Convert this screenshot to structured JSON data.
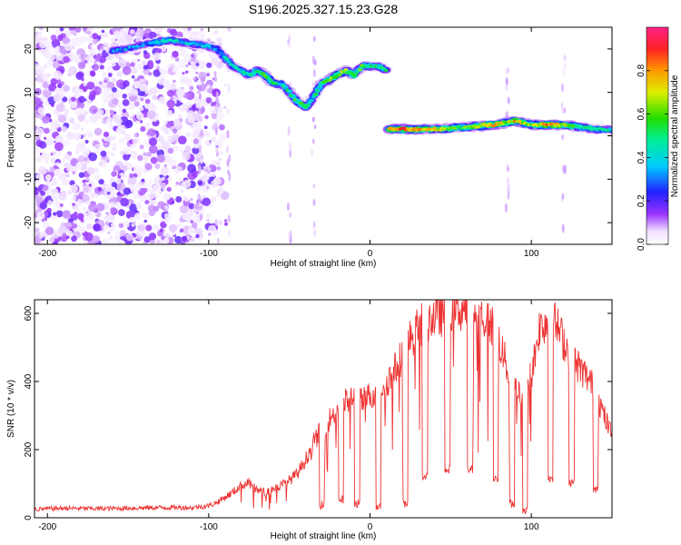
{
  "title": "S196.2025.327.15.23.G28",
  "chart_data": [
    {
      "type": "heatmap",
      "name": "spectrogram",
      "xlabel": "Height of straight line (km)",
      "ylabel": "Frequency (Hz)",
      "xlim": [
        -208,
        150
      ],
      "ylim": [
        -25,
        25
      ],
      "xticks": [
        -200,
        -100,
        0,
        100
      ],
      "yticks": [
        -20,
        -10,
        0,
        10,
        20
      ],
      "colorbar": {
        "label": "Normalized spectral amplitude",
        "range": [
          0,
          1
        ],
        "ticks": [
          0.0,
          0.2,
          0.4,
          0.6,
          0.8
        ],
        "tick_labels": [
          "0.0",
          "0.2",
          "0.4",
          "0.6",
          "0.8"
        ]
      },
      "ridge": {
        "description_points_x": [
          -160,
          -150,
          -140,
          -125,
          -115,
          -105,
          -95,
          -90,
          -85,
          -80,
          -75,
          -70,
          -65,
          -60,
          -55,
          -50,
          -45,
          -40,
          -35,
          -30,
          -25,
          -20,
          -15,
          -10,
          -5,
          0,
          5,
          10,
          12,
          20,
          40,
          60,
          75,
          85,
          90,
          100,
          110,
          120,
          130,
          140,
          150
        ],
        "frequency_hz": [
          19.5,
          20,
          21,
          22,
          21.5,
          21,
          20,
          18,
          16,
          15,
          14,
          15,
          14,
          12,
          12,
          10,
          8,
          6.5,
          9,
          12,
          13,
          14,
          15,
          14,
          16,
          16,
          16,
          15,
          1.5,
          1.5,
          1.5,
          2,
          2.5,
          3,
          3.5,
          2.5,
          2.5,
          2.5,
          2,
          1.5,
          1.5
        ],
        "amplitude": [
          0.3,
          0.35,
          0.3,
          0.45,
          0.4,
          0.4,
          0.35,
          0.45,
          0.45,
          0.4,
          0.5,
          0.55,
          0.6,
          0.55,
          0.45,
          0.5,
          0.6,
          0.55,
          0.5,
          0.6,
          0.65,
          0.7,
          0.65,
          0.6,
          0.6,
          0.55,
          0.5,
          0.5,
          0.85,
          0.9,
          0.75,
          0.6,
          0.9,
          0.7,
          0.85,
          0.65,
          0.9,
          0.75,
          0.6,
          0.5,
          0.45
        ]
      }
    },
    {
      "type": "line",
      "name": "snr",
      "xlabel": "Height of straight line (km)",
      "ylabel": "SNR (10 * v/v)",
      "xlim": [
        -208,
        150
      ],
      "ylim": [
        0,
        640
      ],
      "xticks": [
        -200,
        -100,
        0,
        100
      ],
      "yticks": [
        0,
        200,
        400,
        600
      ],
      "color": "#ee3333",
      "x": [
        -208,
        -190,
        -170,
        -150,
        -130,
        -110,
        -100,
        -95,
        -90,
        -85,
        -80,
        -75,
        -70,
        -65,
        -60,
        -55,
        -50,
        -45,
        -40,
        -35,
        -30,
        -25,
        -20,
        -15,
        -10,
        -5,
        0,
        5,
        10,
        15,
        20,
        25,
        30,
        35,
        40,
        45,
        50,
        55,
        60,
        65,
        70,
        75,
        80,
        85,
        90,
        95,
        100,
        105,
        110,
        115,
        120,
        125,
        130,
        135,
        140,
        145,
        150
      ],
      "y": [
        25,
        28,
        27,
        28,
        30,
        30,
        35,
        45,
        60,
        75,
        95,
        100,
        80,
        75,
        85,
        95,
        110,
        130,
        170,
        220,
        260,
        290,
        320,
        340,
        350,
        340,
        360,
        375,
        395,
        430,
        480,
        525,
        560,
        580,
        590,
        600,
        610,
        615,
        610,
        600,
        590,
        570,
        520,
        440,
        380,
        360,
        420,
        560,
        580,
        570,
        520,
        470,
        440,
        410,
        370,
        300,
        240
      ],
      "dips": [
        {
          "x": -30,
          "y": 25
        },
        {
          "x": -18,
          "y": 40
        },
        {
          "x": -8,
          "y": 30
        },
        {
          "x": 5,
          "y": 20
        },
        {
          "x": 22,
          "y": 30
        },
        {
          "x": 34,
          "y": 110
        },
        {
          "x": 48,
          "y": 130
        },
        {
          "x": 62,
          "y": 130
        },
        {
          "x": 78,
          "y": 100
        },
        {
          "x": 88,
          "y": 30
        },
        {
          "x": 96,
          "y": 10
        },
        {
          "x": 112,
          "y": 100
        },
        {
          "x": 125,
          "y": 90
        },
        {
          "x": 140,
          "y": 70
        }
      ]
    }
  ]
}
